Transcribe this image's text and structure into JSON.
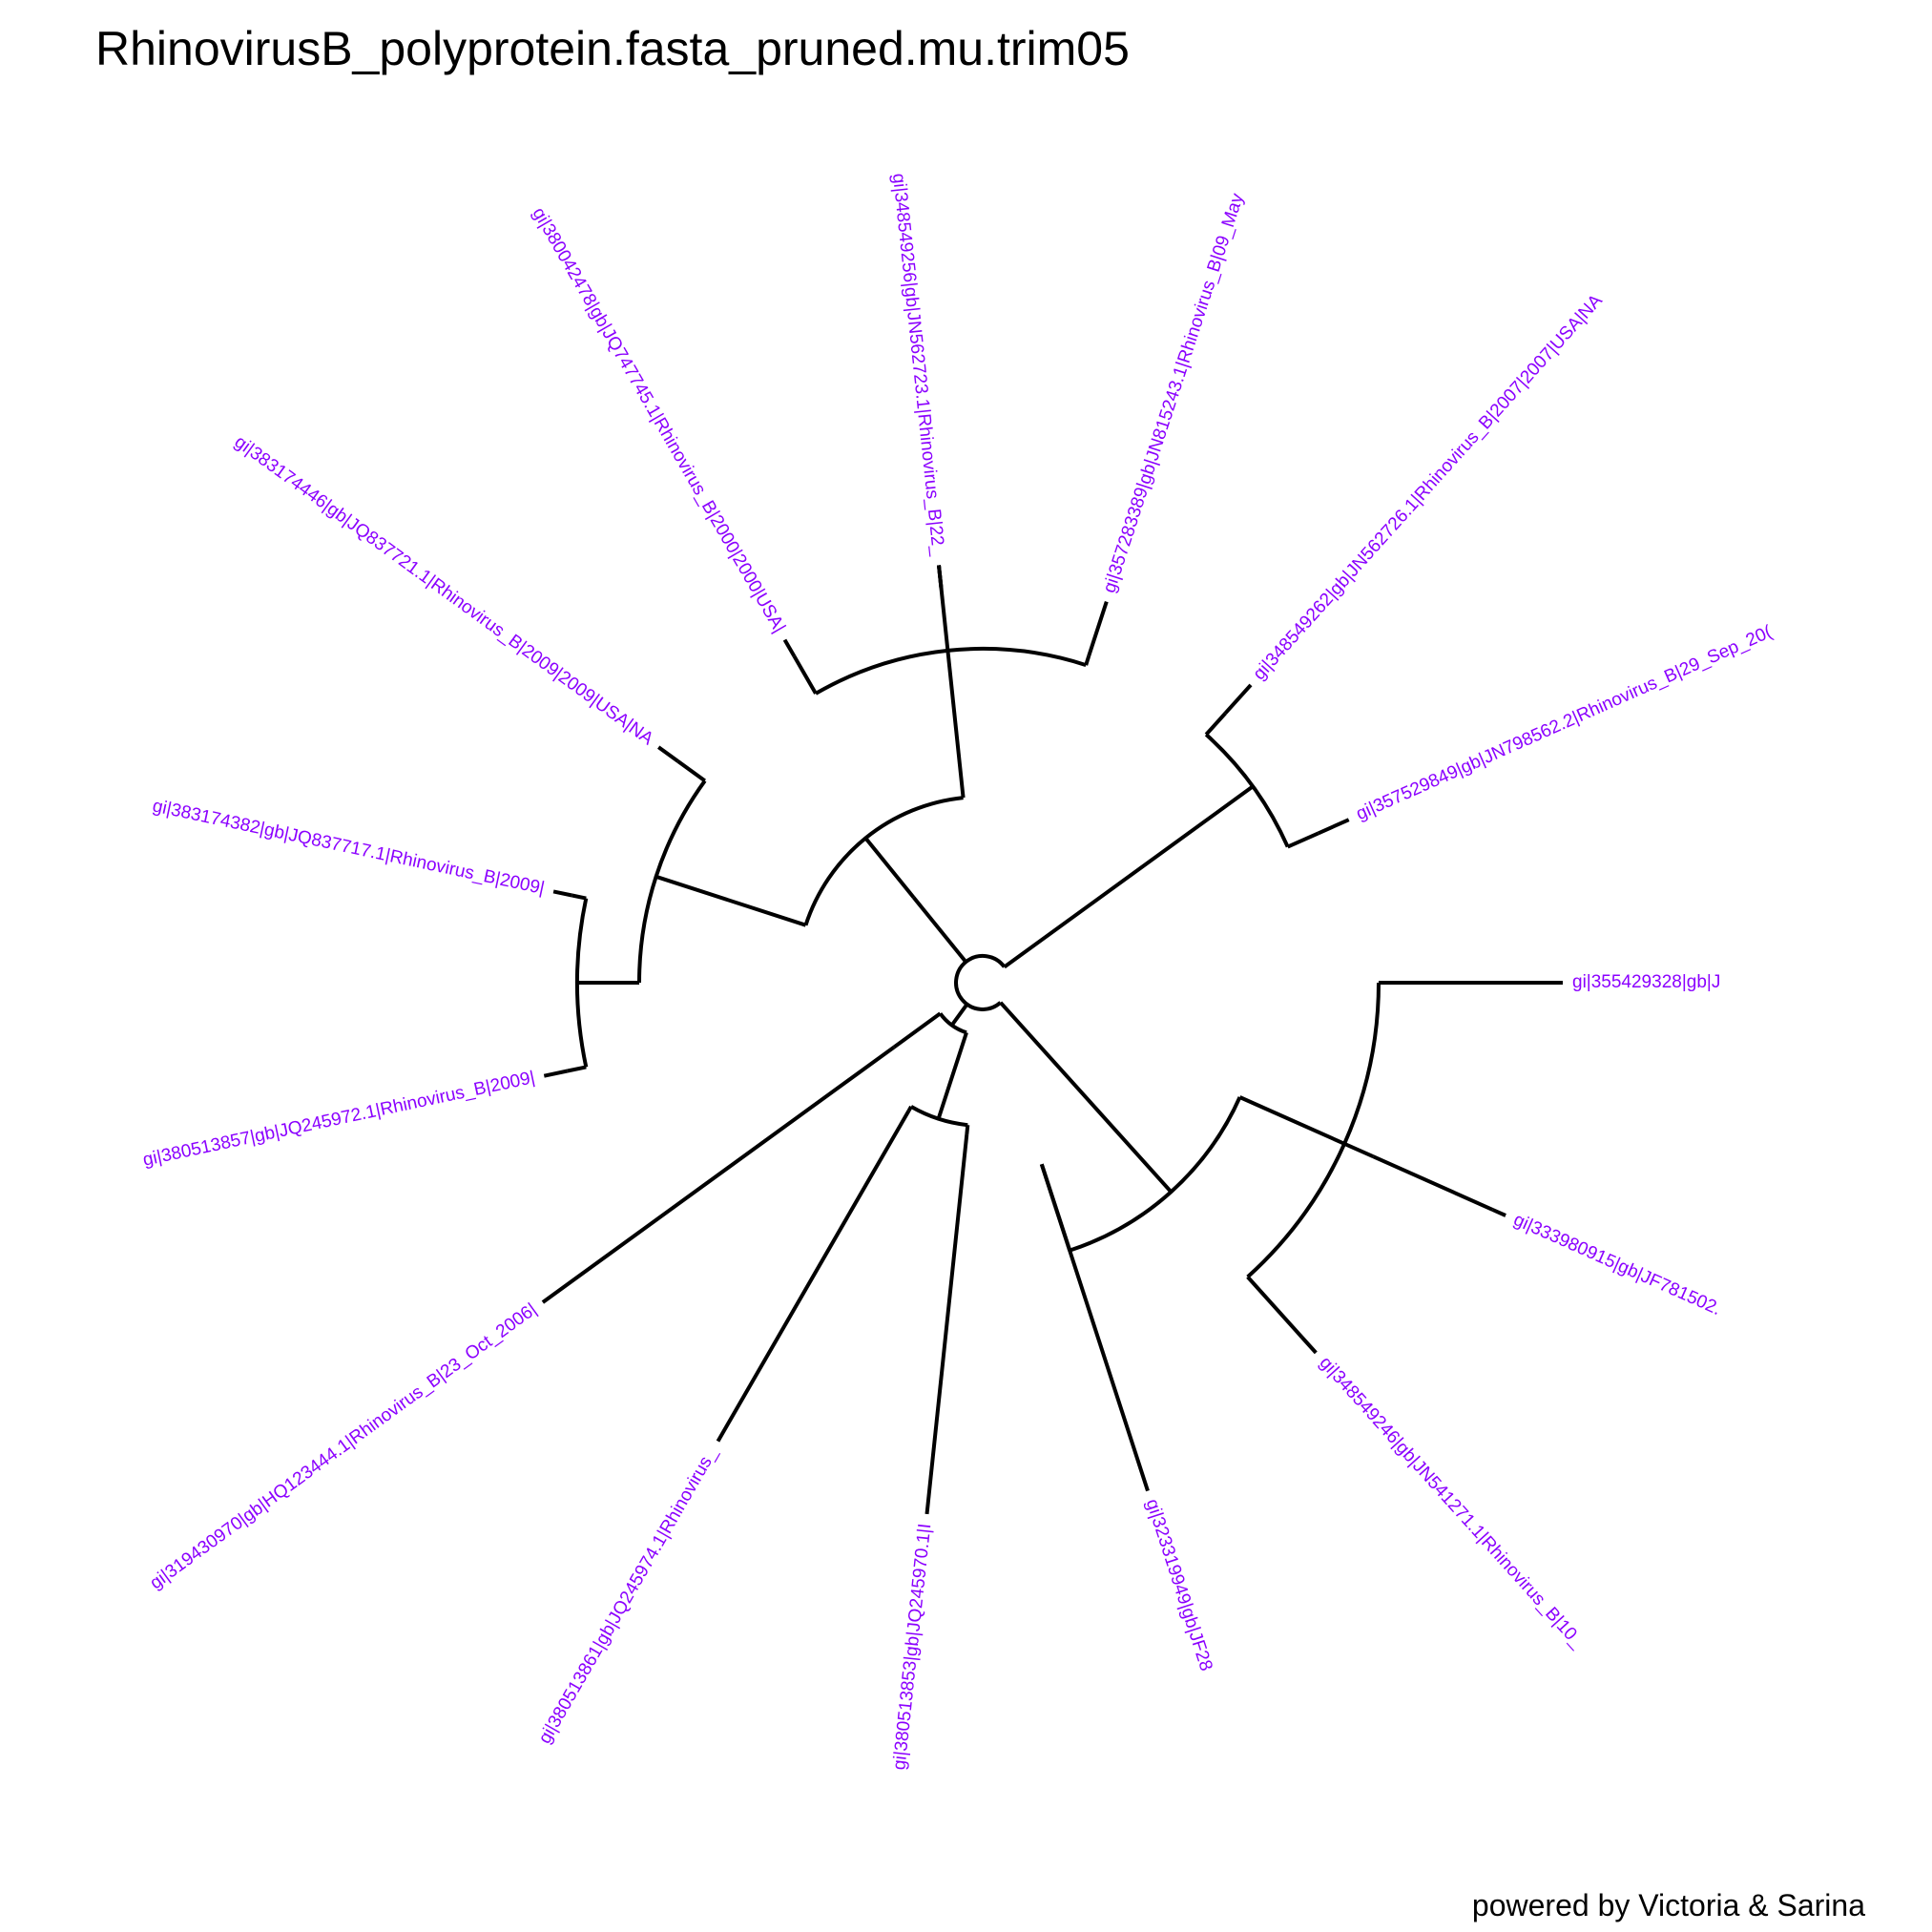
{
  "title": "RhinovirusB_polyprotein.fasta_pruned.mu.trim05",
  "credit": "powered by Victoria & Sarina",
  "label_color": "#8b00ff",
  "branch_color": "#000000",
  "tips": [
    {
      "id": "t1",
      "label": "gi|355429328|gb|J"
    },
    {
      "id": "t2",
      "label": "gi|333980915|gb|JF781502."
    },
    {
      "id": "t3",
      "label": "gi|348549246|gb|JN541271.1|Rhinovirus_B|10_"
    },
    {
      "id": "t4",
      "label": "gi|323319949|gb|JF28"
    },
    {
      "id": "t5",
      "label": "gi|380513853|gb|JQ245970.1|I"
    },
    {
      "id": "t6",
      "label": "gi|380513861|gb|JQ245974.1|Rhinovirus_"
    },
    {
      "id": "t7",
      "label": "gi|319430970|gb|HQ123444.1|Rhinovirus_B|23_Oct_2006|"
    },
    {
      "id": "t8",
      "label": "gi|380513857|gb|JQ245972.1|Rhinovirus_B|2009|"
    },
    {
      "id": "t9",
      "label": "gi|383174382|gb|JQ837717.1|Rhinovirus_B|2009|"
    },
    {
      "id": "t10",
      "label": "gi|383174446|gb|JQ837721.1|Rhinovirus_B|2009|2009|USA|NA"
    },
    {
      "id": "t11",
      "label": "gi|380042478|gb|JQ747745.1|Rhinovirus_B|2000|2000|USA|"
    },
    {
      "id": "t12",
      "label": "gi|348549256|gb|JN562723.1|Rhinovirus_B|22_"
    },
    {
      "id": "t13",
      "label": "gi|357283389|gb|JN815243.1|Rhinovirus_B|09_May"
    },
    {
      "id": "t14",
      "label": "gi|348549262|gb|JN562726.1|Rhinovirus_B|2007|2007|USA|NA"
    },
    {
      "id": "t15",
      "label": "gi|357529849|gb|JN798562.2|Rhinovirus_B|29_Sep_20("
    }
  ]
}
